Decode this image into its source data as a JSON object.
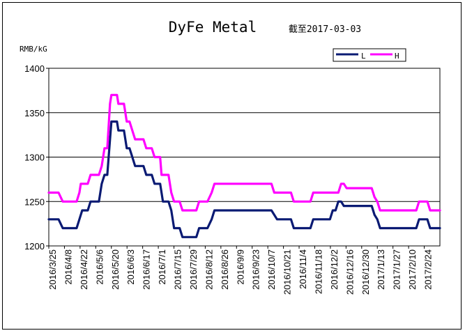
{
  "chart_data": {
    "type": "line",
    "title": "DyFe Metal",
    "subtitle": "截至2017-03-03",
    "ylabel": "RMB/kG",
    "xlabel": "",
    "ylim": [
      1200,
      1400
    ],
    "yticks": [
      1200,
      1250,
      1300,
      1350,
      1400
    ],
    "grid": true,
    "legend_position": "top-right",
    "categories": [
      "2016/3/25",
      "2016/4/8",
      "2016/4/22",
      "2016/5/6",
      "2016/5/20",
      "2016/6/3",
      "2016/6/17",
      "2016/7/1",
      "2016/7/15",
      "2016/7/29",
      "2016/8/12",
      "2016/8/26",
      "2016/9/9",
      "2016/9/23",
      "2016/10/7",
      "2016/10/21",
      "2016/11/4",
      "2016/11/18",
      "2016/12/2",
      "2016/12/16",
      "2016/12/30",
      "2017/1/13",
      "2017/1/27",
      "2017/2/10",
      "2017/2/24"
    ],
    "series": [
      {
        "name": "L",
        "color": "#0a1a73",
        "points": [
          [
            0,
            1230
          ],
          [
            7,
            1230
          ],
          [
            10,
            1220
          ],
          [
            20,
            1220
          ],
          [
            22,
            1230
          ],
          [
            24,
            1240
          ],
          [
            28,
            1240
          ],
          [
            30,
            1250
          ],
          [
            36,
            1250
          ],
          [
            38,
            1270
          ],
          [
            40,
            1280
          ],
          [
            42,
            1280
          ],
          [
            44,
            1320
          ],
          [
            45,
            1340
          ],
          [
            49,
            1340
          ],
          [
            50,
            1330
          ],
          [
            54,
            1330
          ],
          [
            56,
            1310
          ],
          [
            58,
            1310
          ],
          [
            60,
            1300
          ],
          [
            62,
            1290
          ],
          [
            68,
            1290
          ],
          [
            70,
            1280
          ],
          [
            74,
            1280
          ],
          [
            76,
            1270
          ],
          [
            80,
            1270
          ],
          [
            82,
            1250
          ],
          [
            86,
            1250
          ],
          [
            88,
            1240
          ],
          [
            90,
            1220
          ],
          [
            94,
            1220
          ],
          [
            96,
            1210
          ],
          [
            106,
            1210
          ],
          [
            108,
            1220
          ],
          [
            114,
            1220
          ],
          [
            117,
            1230
          ],
          [
            119,
            1240
          ],
          [
            160,
            1240
          ],
          [
            164,
            1230
          ],
          [
            174,
            1230
          ],
          [
            176,
            1220
          ],
          [
            188,
            1220
          ],
          [
            190,
            1230
          ],
          [
            202,
            1230
          ],
          [
            204,
            1240
          ],
          [
            206,
            1240
          ],
          [
            208,
            1250
          ],
          [
            210,
            1250
          ],
          [
            212,
            1245
          ],
          [
            232,
            1245
          ],
          [
            234,
            1235
          ],
          [
            236,
            1230
          ],
          [
            238,
            1220
          ],
          [
            264,
            1220
          ],
          [
            266,
            1230
          ],
          [
            272,
            1230
          ],
          [
            274,
            1220
          ],
          [
            281,
            1220
          ]
        ]
      },
      {
        "name": "H",
        "color": "#ff00ff",
        "points": [
          [
            0,
            1260
          ],
          [
            7,
            1260
          ],
          [
            10,
            1250
          ],
          [
            20,
            1250
          ],
          [
            22,
            1260
          ],
          [
            23,
            1270
          ],
          [
            28,
            1270
          ],
          [
            30,
            1280
          ],
          [
            36,
            1280
          ],
          [
            38,
            1290
          ],
          [
            40,
            1310
          ],
          [
            42,
            1310
          ],
          [
            44,
            1360
          ],
          [
            45,
            1370
          ],
          [
            49,
            1370
          ],
          [
            50,
            1360
          ],
          [
            54,
            1360
          ],
          [
            56,
            1340
          ],
          [
            58,
            1340
          ],
          [
            60,
            1330
          ],
          [
            62,
            1320
          ],
          [
            68,
            1320
          ],
          [
            70,
            1310
          ],
          [
            74,
            1310
          ],
          [
            76,
            1300
          ],
          [
            80,
            1300
          ],
          [
            81,
            1280
          ],
          [
            86,
            1280
          ],
          [
            88,
            1260
          ],
          [
            90,
            1250
          ],
          [
            94,
            1250
          ],
          [
            96,
            1240
          ],
          [
            106,
            1240
          ],
          [
            108,
            1250
          ],
          [
            114,
            1250
          ],
          [
            117,
            1260
          ],
          [
            119,
            1270
          ],
          [
            160,
            1270
          ],
          [
            162,
            1260
          ],
          [
            174,
            1260
          ],
          [
            176,
            1250
          ],
          [
            188,
            1250
          ],
          [
            190,
            1260
          ],
          [
            208,
            1260
          ],
          [
            210,
            1270
          ],
          [
            212,
            1270
          ],
          [
            214,
            1265
          ],
          [
            232,
            1265
          ],
          [
            234,
            1255
          ],
          [
            236,
            1250
          ],
          [
            238,
            1240
          ],
          [
            264,
            1240
          ],
          [
            266,
            1250
          ],
          [
            272,
            1250
          ],
          [
            274,
            1240
          ],
          [
            281,
            1240
          ]
        ]
      }
    ]
  }
}
